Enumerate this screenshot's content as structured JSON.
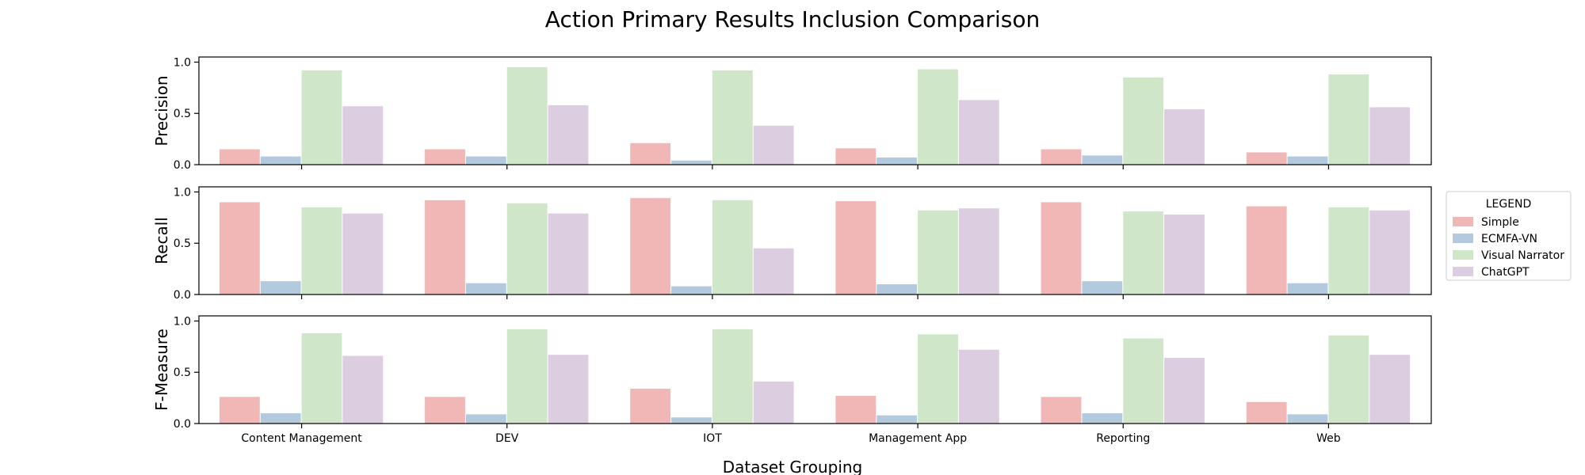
{
  "chart_data": {
    "type": "bar",
    "title": "Action Primary Results Inclusion Comparison",
    "xlabel": "Dataset Grouping",
    "categories": [
      "Content Management",
      "DEV",
      "IOT",
      "Management App",
      "Reporting",
      "Web"
    ],
    "legend": {
      "title": "LEGEND",
      "placement": "right",
      "entries": [
        "Simple",
        "ECMFA-VN",
        "Visual Narrator",
        "ChatGPT"
      ]
    },
    "colors": [
      "#f1b6b6",
      "#b3c9dd",
      "#cfe6c9",
      "#dccde1"
    ],
    "ylim": [
      0,
      1.05
    ],
    "yticks": [
      "0.0",
      "0.5",
      "1.0"
    ],
    "panels": [
      {
        "ylabel": "Precision",
        "series": [
          {
            "name": "Simple",
            "values": [
              0.15,
              0.15,
              0.21,
              0.16,
              0.15,
              0.12
            ]
          },
          {
            "name": "ECMFA-VN",
            "values": [
              0.08,
              0.08,
              0.04,
              0.07,
              0.09,
              0.08
            ]
          },
          {
            "name": "Visual Narrator",
            "values": [
              0.92,
              0.95,
              0.92,
              0.93,
              0.85,
              0.88
            ]
          },
          {
            "name": "ChatGPT",
            "values": [
              0.57,
              0.58,
              0.38,
              0.63,
              0.54,
              0.56
            ]
          }
        ]
      },
      {
        "ylabel": "Recall",
        "series": [
          {
            "name": "Simple",
            "values": [
              0.9,
              0.92,
              0.94,
              0.91,
              0.9,
              0.86
            ]
          },
          {
            "name": "ECMFA-VN",
            "values": [
              0.13,
              0.11,
              0.08,
              0.1,
              0.13,
              0.11
            ]
          },
          {
            "name": "Visual Narrator",
            "values": [
              0.85,
              0.89,
              0.92,
              0.82,
              0.81,
              0.85
            ]
          },
          {
            "name": "ChatGPT",
            "values": [
              0.79,
              0.79,
              0.45,
              0.84,
              0.78,
              0.82
            ]
          }
        ]
      },
      {
        "ylabel": "F-Measure",
        "series": [
          {
            "name": "Simple",
            "values": [
              0.26,
              0.26,
              0.34,
              0.27,
              0.26,
              0.21
            ]
          },
          {
            "name": "ECMFA-VN",
            "values": [
              0.1,
              0.09,
              0.06,
              0.08,
              0.1,
              0.09
            ]
          },
          {
            "name": "Visual Narrator",
            "values": [
              0.88,
              0.92,
              0.92,
              0.87,
              0.83,
              0.86
            ]
          },
          {
            "name": "ChatGPT",
            "values": [
              0.66,
              0.67,
              0.41,
              0.72,
              0.64,
              0.67
            ]
          }
        ]
      }
    ]
  }
}
